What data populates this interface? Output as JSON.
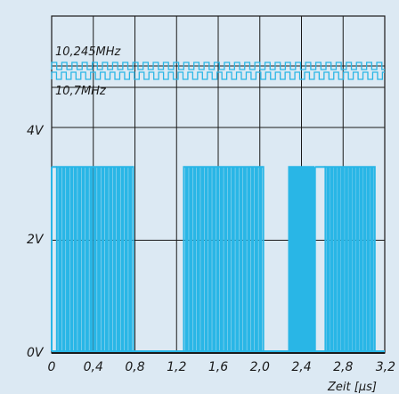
{
  "chart_data": {
    "type": "line",
    "title": "",
    "xlabel": "Zeit [µs]",
    "ylabel": "",
    "x_ticks": [
      "0",
      "0,4",
      "0,8",
      "1,2",
      "1,6",
      "2,0",
      "2,4",
      "2,8",
      "3,2"
    ],
    "y_ticks": [
      "0V",
      "2V",
      "4V"
    ],
    "xlim": [
      0,
      3.2
    ],
    "ylim": [
      0,
      5
    ],
    "grid": true,
    "panel_labels": [
      "10,245MHz",
      "10,7MHz"
    ],
    "signal": {
      "name": "",
      "low_v": 0,
      "high_v": 3.3,
      "bursts_us": [
        {
          "start": 0.05,
          "end": 0.8,
          "pulses": 20
        },
        {
          "start": 1.27,
          "end": 2.05,
          "pulses": 21
        },
        {
          "start": 2.28,
          "end": 2.53,
          "pulses": 8
        },
        {
          "start": 2.63,
          "end": 3.12,
          "pulses": 14
        }
      ],
      "holds_high_us": [
        [
          0.0,
          0.05
        ],
        [
          2.53,
          2.63
        ]
      ]
    },
    "reference_waves": [
      {
        "name": "10,245MHz",
        "freq_mhz": 10.245
      },
      {
        "name": "10,7MHz",
        "freq_mhz": 10.7
      }
    ]
  },
  "colors": {
    "background": "#dce9f3",
    "signal": "#29b6e6",
    "grid": "#1a1a1a",
    "reference": "#29b6e6"
  }
}
